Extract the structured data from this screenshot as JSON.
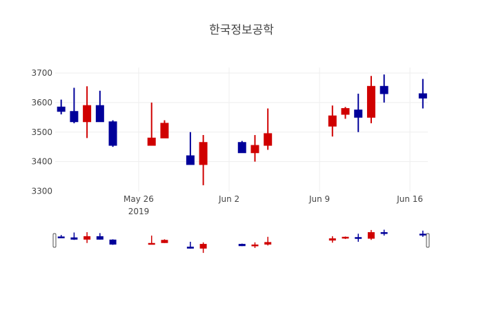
{
  "chart_data": {
    "type": "candlestick",
    "title": "한국정보공학",
    "xlabel": "",
    "ylabel": "",
    "ylim": [
      3300,
      3715
    ],
    "yticks": [
      3300,
      3400,
      3500,
      3600,
      3700
    ],
    "xticks": [
      {
        "label": "May 26",
        "sublabel": "2019",
        "date": "2019-05-26"
      },
      {
        "label": "Jun 2",
        "sublabel": "",
        "date": "2019-06-02"
      },
      {
        "label": "Jun 9",
        "sublabel": "",
        "date": "2019-06-09"
      },
      {
        "label": "Jun 16",
        "sublabel": "",
        "date": "2019-06-16"
      }
    ],
    "increasing_color": "#d00000",
    "decreasing_color": "#00009a",
    "rangeslider": true,
    "grid": true,
    "x": [
      "2019-05-20",
      "2019-05-21",
      "2019-05-22",
      "2019-05-23",
      "2019-05-24",
      "2019-05-27",
      "2019-05-28",
      "2019-05-30",
      "2019-05-31",
      "2019-06-03",
      "2019-06-04",
      "2019-06-05",
      "2019-06-10",
      "2019-06-11",
      "2019-06-12",
      "2019-06-13",
      "2019-06-14",
      "2019-06-17"
    ],
    "open": [
      3585,
      3570,
      3535,
      3590,
      3535,
      3455,
      3480,
      3420,
      3390,
      3465,
      3430,
      3455,
      3520,
      3560,
      3575,
      3550,
      3655,
      3630
    ],
    "high": [
      3610,
      3650,
      3655,
      3640,
      3540,
      3600,
      3540,
      3500,
      3490,
      3470,
      3490,
      3580,
      3590,
      3585,
      3630,
      3690,
      3695,
      3680
    ],
    "low": [
      3560,
      3530,
      3480,
      3535,
      3450,
      3455,
      3480,
      3390,
      3320,
      3430,
      3400,
      3440,
      3485,
      3545,
      3500,
      3530,
      3600,
      3580
    ],
    "close": [
      3570,
      3535,
      3590,
      3535,
      3455,
      3480,
      3530,
      3390,
      3465,
      3430,
      3455,
      3495,
      3555,
      3580,
      3550,
      3655,
      3630,
      3615
    ]
  }
}
